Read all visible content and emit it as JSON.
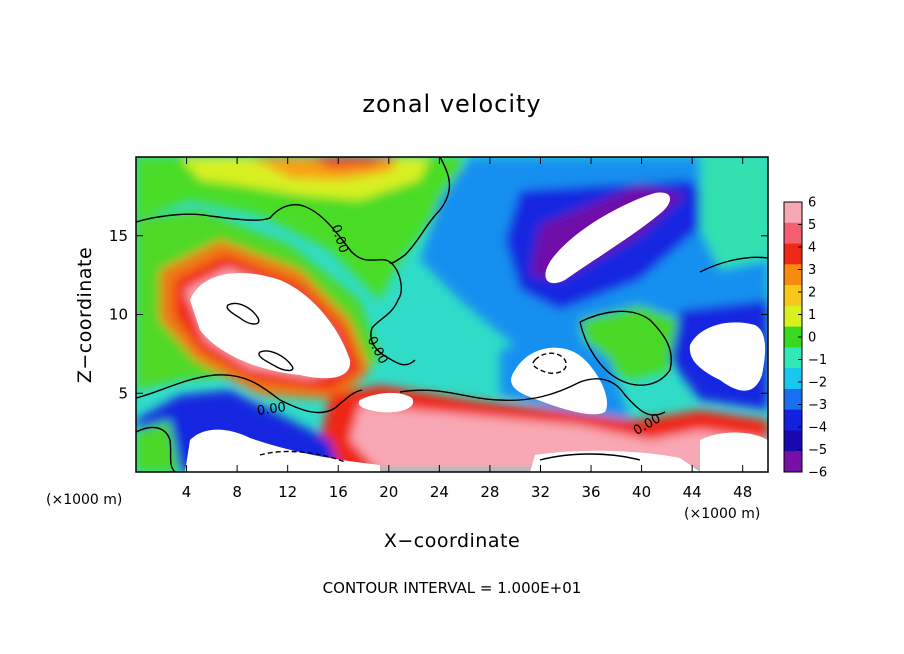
{
  "chart_data": {
    "type": "heatmap",
    "title": "zonal velocity",
    "xlabel": "X−coordinate",
    "ylabel": "Z−coordinate",
    "x_unit": "(×1000 m)",
    "y_unit": "(×1000 m)",
    "xlim": [
      0,
      50
    ],
    "ylim": [
      0,
      20
    ],
    "xticks": [
      "4",
      "8",
      "12",
      "16",
      "20",
      "24",
      "28",
      "32",
      "36",
      "40",
      "44",
      "48"
    ],
    "xtick_values": [
      4,
      8,
      12,
      16,
      20,
      24,
      28,
      32,
      36,
      40,
      44,
      48
    ],
    "yticks": [
      "5",
      "10",
      "15"
    ],
    "ytick_values": [
      5,
      10,
      15
    ],
    "colorbar": {
      "labels": [
        "6",
        "5",
        "4",
        "3",
        "2",
        "1",
        "0",
        "−1",
        "−2",
        "−3",
        "−4",
        "−5",
        "−6"
      ],
      "values": [
        6,
        5,
        4,
        3,
        2,
        1,
        0,
        -1,
        -2,
        -3,
        -4,
        -5,
        -6
      ],
      "colors": [
        "#f8a8b4",
        "#f56070",
        "#f02818",
        "#f88a10",
        "#f8c818",
        "#d8f020",
        "#38d820",
        "#30e8b8",
        "#18c8f0",
        "#1870f0",
        "#1420e0",
        "#1808b0",
        "#7810a8"
      ],
      "above_range_color": "#ffffff"
    },
    "contour_labels": [
      "0.00",
      "0.00",
      "0.00",
      "0.00"
    ],
    "contour_interval": "CONTOUR INTERVAL = 1.000E+01",
    "grid": false,
    "legend": "colorbar-right"
  }
}
